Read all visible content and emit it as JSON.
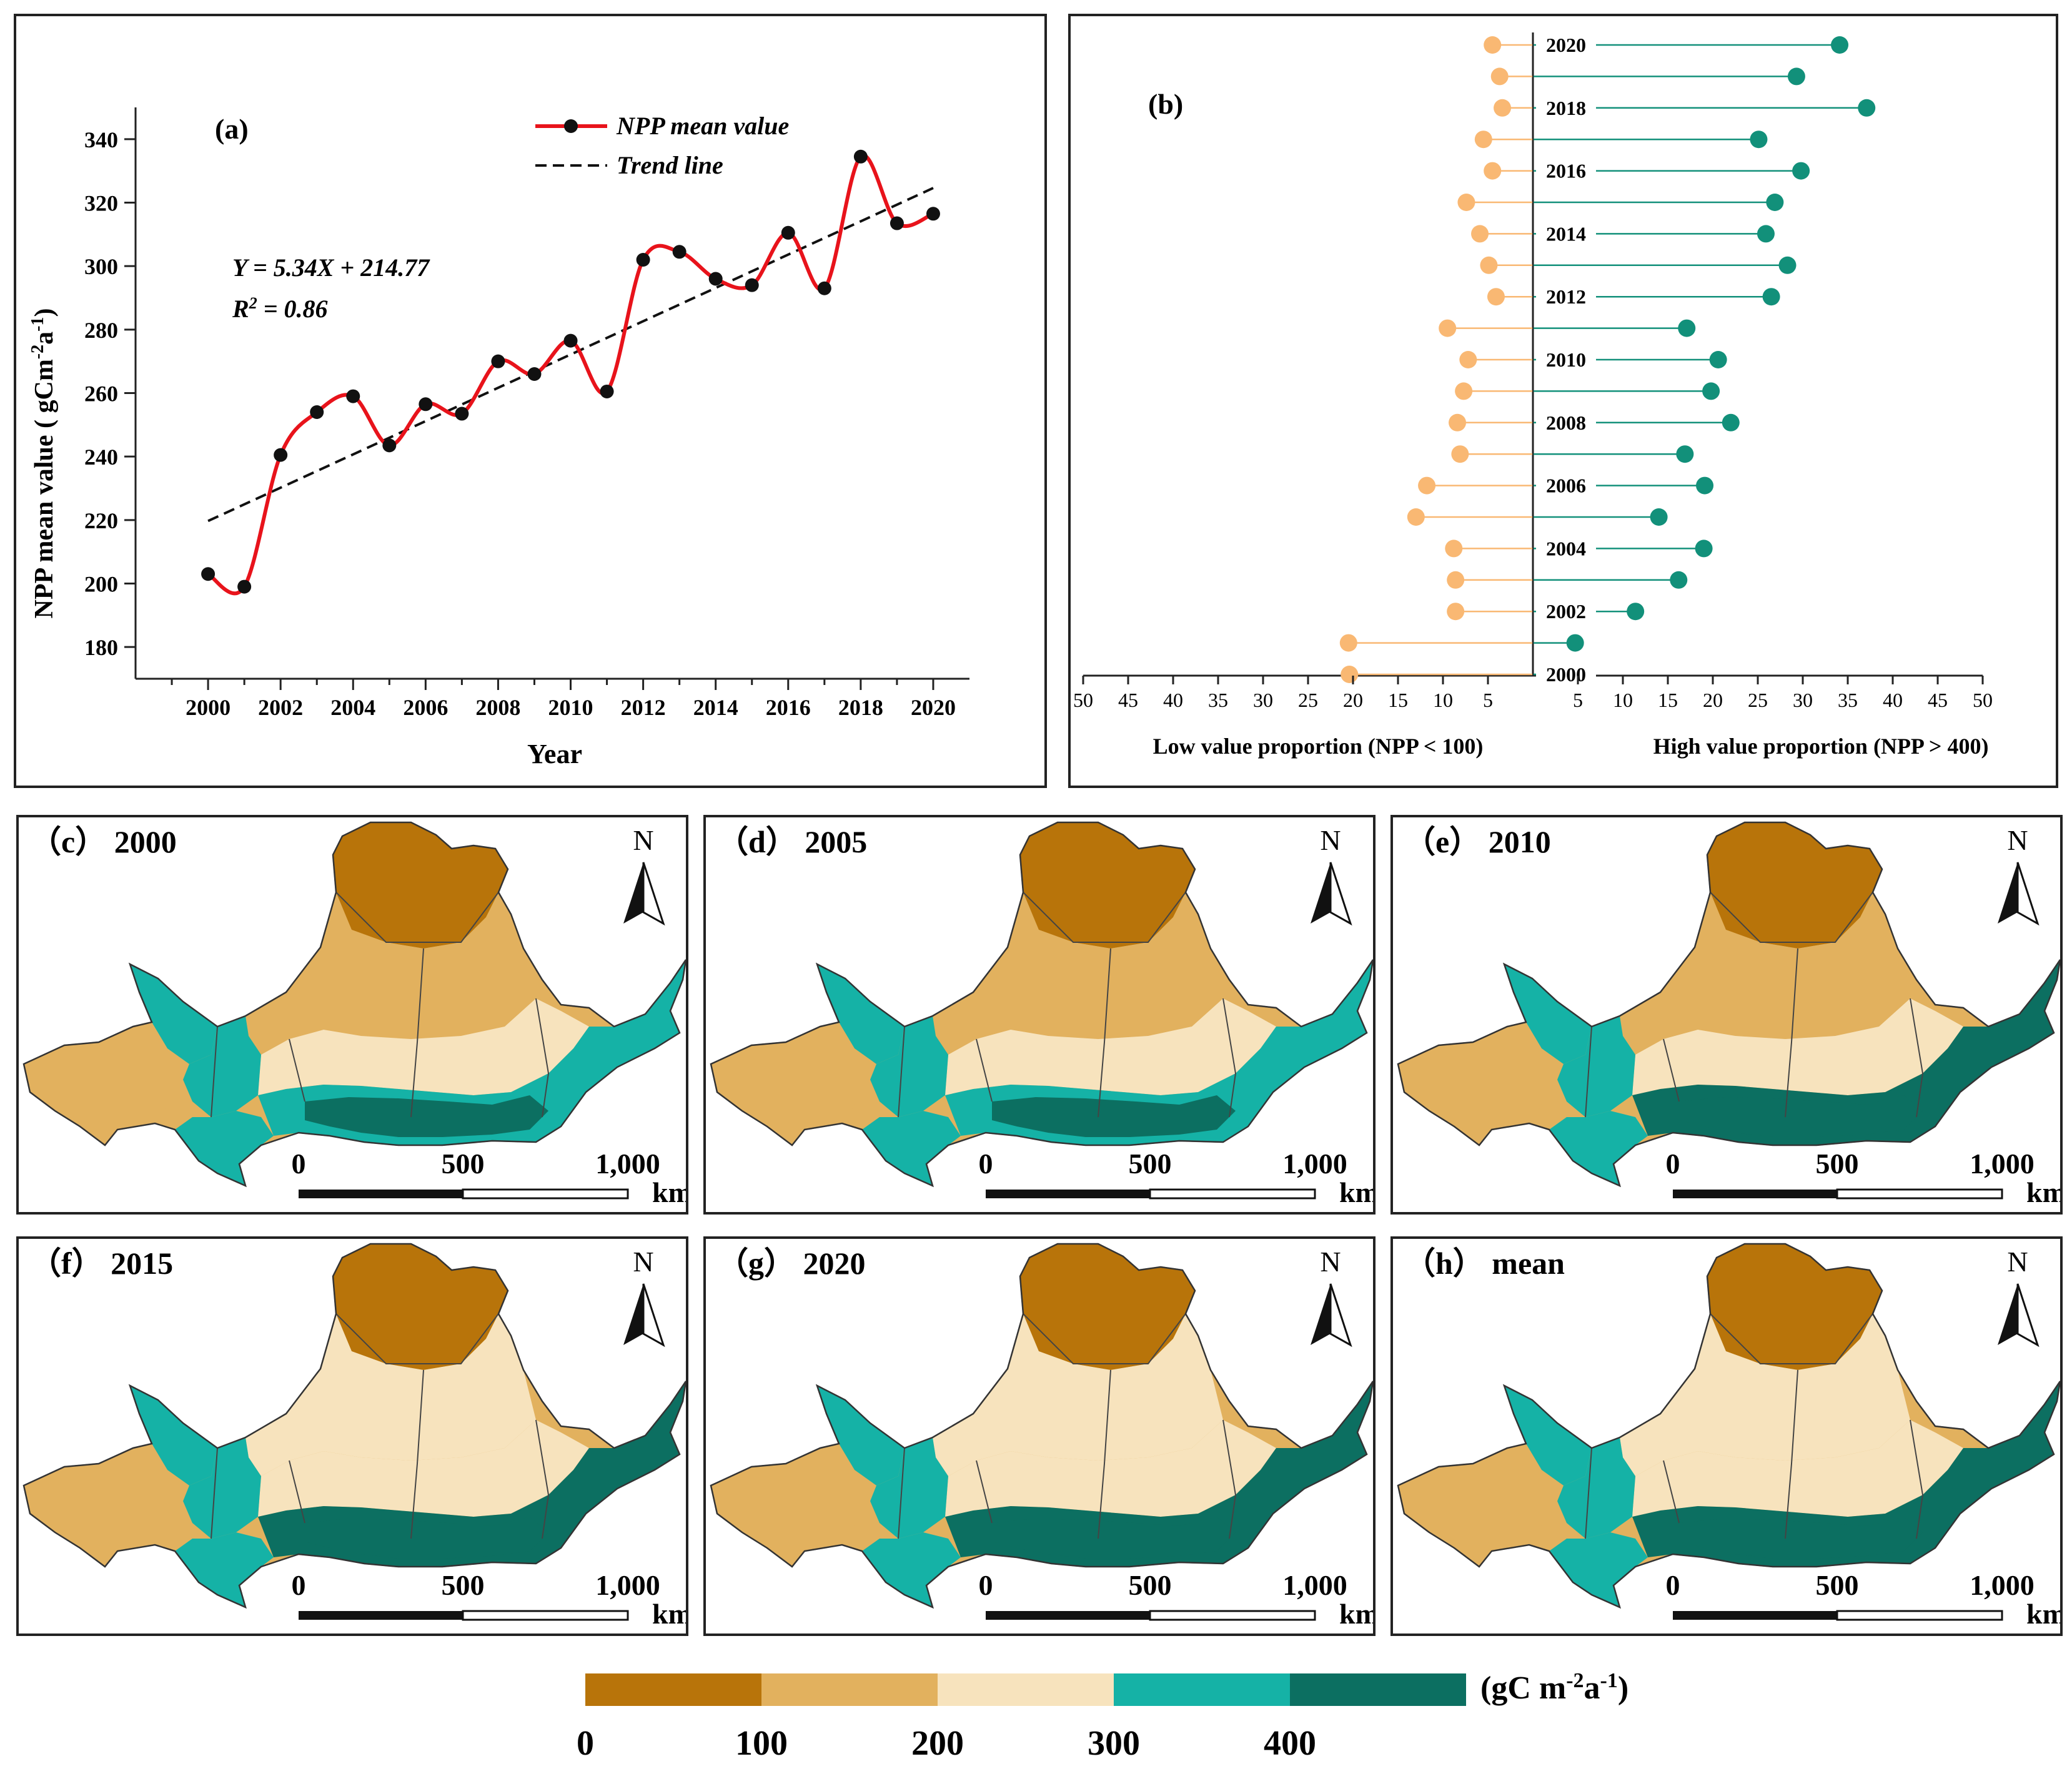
{
  "chart_data": [
    {
      "panel": "(a)",
      "type": "line",
      "xlabel": "Year",
      "ylabel_main": "NPP mean value ( gCm",
      "ylabel_sup1": "-2",
      "ylabel_mid": "a",
      "ylabel_sup2": "-1",
      "ylabel_end": ")",
      "xlim": [
        1998,
        2021
      ],
      "ylim": [
        170,
        350
      ],
      "x_ticks": [
        2000,
        2002,
        2004,
        2006,
        2008,
        2010,
        2012,
        2014,
        2016,
        2018,
        2020
      ],
      "y_ticks": [
        180,
        200,
        220,
        240,
        260,
        280,
        300,
        320,
        340
      ],
      "x": [
        2000,
        2001,
        2002,
        2003,
        2004,
        2005,
        2006,
        2007,
        2008,
        2009,
        2010,
        2011,
        2012,
        2013,
        2014,
        2015,
        2016,
        2017,
        2018,
        2019,
        2020
      ],
      "series": [
        {
          "name": "NPP mean value",
          "color": "#e8131b",
          "values": [
            203,
            199,
            240.5,
            254,
            259,
            243.5,
            256.5,
            253.5,
            270,
            266,
            276.5,
            260.5,
            302,
            304.5,
            296,
            294,
            310.5,
            293,
            334.5,
            313.5,
            316.5
          ]
        }
      ],
      "trend": {
        "name": "Trend line",
        "x": [
          2000,
          2020
        ],
        "y": [
          219.7,
          324.6
        ]
      },
      "equation": "Y = 5.34X + 214.77",
      "r2_prefix": "R",
      "r2_sup": "2",
      "r2_suffix": " = 0.86",
      "legend_position": "top-right"
    },
    {
      "panel": "(b)",
      "type": "lollipop",
      "years": [
        2020,
        2019,
        2018,
        2017,
        2016,
        2015,
        2014,
        2013,
        2012,
        2011,
        2010,
        2009,
        2008,
        2007,
        2006,
        2005,
        2004,
        2003,
        2002,
        2001,
        2000
      ],
      "year_labels": [
        "2020",
        "2018",
        "2016",
        "2014",
        "2012",
        "2010",
        "2008",
        "2006",
        "2004",
        "2002",
        "2000"
      ],
      "low_values": [
        4.5,
        3.7,
        3.4,
        5.5,
        4.5,
        7.4,
        5.9,
        4.9,
        4.1,
        9.5,
        7.2,
        7.7,
        8.4,
        8.1,
        11.8,
        13.0,
        8.8,
        8.6,
        8.6,
        20.5,
        20.4
      ],
      "high_values": [
        34.1,
        29.3,
        37.1,
        25.1,
        29.8,
        26.9,
        25.9,
        28.3,
        26.5,
        17.1,
        20.6,
        19.8,
        22.0,
        16.9,
        19.1,
        14.0,
        19.0,
        16.2,
        11.4,
        4.7,
        5.0
      ],
      "low_color": "#f9b873",
      "high_color": "#12907a",
      "axis_ticks": [
        "50",
        "45",
        "40",
        "35",
        "30",
        "25",
        "20",
        "15",
        "10",
        "5",
        "5",
        "10",
        "15",
        "20",
        "25",
        "30",
        "35",
        "40",
        "45",
        "50"
      ],
      "xlabel_left": "Low value proportion (NPP < 100)",
      "xlabel_right": "High value proportion (NPP > 400)"
    }
  ],
  "maps": [
    {
      "label": "（c） 2000"
    },
    {
      "label": "（d） 2005"
    },
    {
      "label": "（e） 2010"
    },
    {
      "label": "（f） 2015"
    },
    {
      "label": "（g） 2020"
    },
    {
      "label": "（h） mean"
    }
  ],
  "map_common": {
    "north": "N",
    "scale_ticks": [
      "0",
      "500",
      "1,000"
    ],
    "scale_unit": "km"
  },
  "colorbar": {
    "colors": [
      "#b8740a",
      "#e2b15e",
      "#f7e3bd",
      "#15b2a6",
      "#0c6f61"
    ],
    "tick_labels": [
      "0",
      "100",
      "200",
      "300",
      "400"
    ],
    "unit_main": "(gC m",
    "unit_sup1": "-2",
    "unit_mid": "a",
    "unit_sup2": "-1",
    "unit_end": ")"
  }
}
